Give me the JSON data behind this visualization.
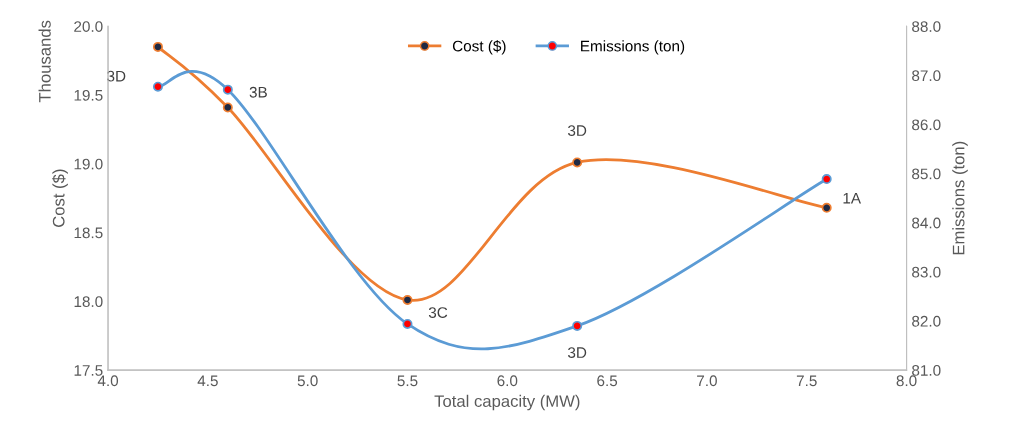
{
  "chart_data": {
    "type": "line",
    "xlabel": "Total capacity (MW)",
    "ylabel": "Cost ($)",
    "y2label": "Emissions (ton)",
    "series": [
      {
        "name": "Cost ($)",
        "color": "#ed7d31",
        "x": [
          4.25,
          4.6,
          5.5,
          6.35,
          7.6
        ],
        "values": [
          19.85,
          19.41,
          18.01,
          19.01,
          18.68
        ]
      },
      {
        "name": "Emissions (ton)",
        "color": "#5b9bd5",
        "axis": "y2",
        "x": [
          4.25,
          4.6,
          5.5,
          6.35,
          7.6
        ],
        "values": [
          86.77,
          86.71,
          81.94,
          81.9,
          84.89
        ]
      }
    ],
    "xlim": [
      4.0,
      8.0
    ],
    "xticks": [
      {
        "value": 4,
        "label": "4.0"
      },
      4.5,
      {
        "value": 5,
        "label": "5.0"
      },
      5.5,
      {
        "value": 6,
        "label": "6.0"
      },
      6.5,
      {
        "value": 7,
        "label": "7.0"
      },
      7.5,
      {
        "value": 8,
        "label": "8.0"
      }
    ],
    "ylim": [
      17.5,
      20.0
    ],
    "yticks": [
      17.5,
      {
        "value": 18,
        "label": "18.0"
      },
      18.5,
      {
        "value": 19,
        "label": "19.0"
      },
      19.5,
      {
        "value": 20,
        "label": "20.0"
      }
    ],
    "y2lim": [
      81,
      88
    ],
    "y2ticks": [
      {
        "value": 81,
        "label": "81.0"
      },
      {
        "value": 82,
        "label": "82.0"
      },
      {
        "value": 83,
        "label": "83.0"
      },
      {
        "value": 84,
        "label": "84.0"
      },
      {
        "value": 85,
        "label": "85.0"
      },
      {
        "value": 86,
        "label": "86.0"
      },
      {
        "value": 87,
        "label": "87.0"
      },
      {
        "value": 88,
        "label": "88.0"
      }
    ],
    "annotations": [
      "Thousands",
      {
        "text": "3D",
        "x": 4.25,
        "y": 19.85
      },
      {
        "text": "3B",
        "x": 4.6,
        "y": 19.41
      },
      {
        "text": "3C",
        "x": 5.5,
        "y": 18.01
      },
      {
        "text": "3D",
        "x": 6.35,
        "y": 19.01
      },
      {
        "text": "3D",
        "x": 6.35,
        "y": 17.82
      },
      {
        "text": "1A",
        "x": 7.6,
        "y": 18.68
      }
    ],
    "marker": "circle",
    "line_style": "solid",
    "grid": false,
    "legend": "top"
  }
}
